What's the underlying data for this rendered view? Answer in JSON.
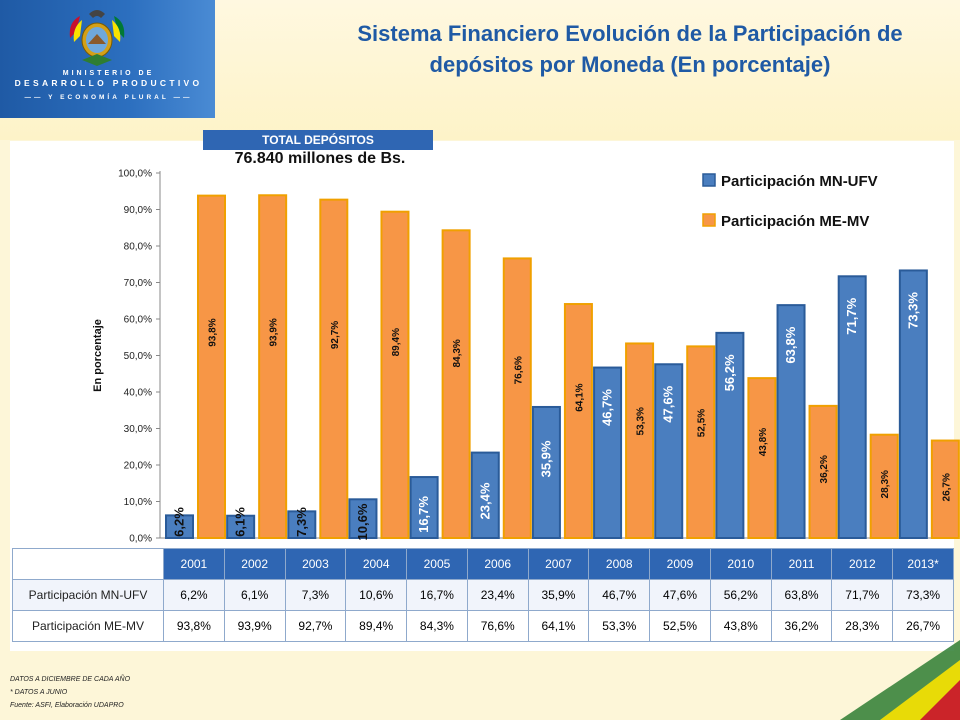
{
  "header": {
    "ministry_line1": "MINISTERIO DE",
    "ministry_line2": "DESARROLLO PRODUCTIVO",
    "ministry_line3": "Y ECONOMÍA PLURAL",
    "title_line1": "Sistema Financiero Evolución de la Participación de",
    "title_line2": "depósitos por Moneda (En porcentaje)"
  },
  "total": {
    "label": "TOTAL DEPÓSITOS",
    "value": "76.840 millones de Bs."
  },
  "colors": {
    "mn": "#4a7ebf",
    "me": "#f79646",
    "mn_border": "#2a5b99",
    "me_border": "#f0a000",
    "header_blue": "#2f66b3"
  },
  "chart_data": {
    "type": "bar",
    "categories": [
      "2001",
      "2002",
      "2003",
      "2004",
      "2005",
      "2006",
      "2007",
      "2008",
      "2009",
      "2010",
      "2011",
      "2012",
      "2013*"
    ],
    "ylabel": "En porcentaje",
    "ylim": [
      0,
      100
    ],
    "yticks": [
      "0,0%",
      "10,0%",
      "20,0%",
      "30,0%",
      "40,0%",
      "50,0%",
      "60,0%",
      "70,0%",
      "80,0%",
      "90,0%",
      "100,0%"
    ],
    "legend_position": "top-right",
    "series": [
      {
        "name": "Participación MN-UFV",
        "values": [
          6.2,
          6.1,
          7.3,
          10.6,
          16.7,
          23.4,
          35.9,
          46.7,
          47.6,
          56.2,
          63.8,
          71.7,
          73.3
        ],
        "labels": [
          "6,2%",
          "6,1%",
          "7,3%",
          "10,6%",
          "16,7%",
          "23,4%",
          "35,9%",
          "46,7%",
          "47,6%",
          "56,2%",
          "63,8%",
          "71,7%",
          "73,3%"
        ]
      },
      {
        "name": "Participación ME-MV",
        "values": [
          93.8,
          93.9,
          92.7,
          89.4,
          84.3,
          76.6,
          64.1,
          53.3,
          52.5,
          43.8,
          36.2,
          28.3,
          26.7
        ],
        "labels": [
          "93,8%",
          "93,9%",
          "92,7%",
          "89,4%",
          "84,3%",
          "76,6%",
          "64,1%",
          "53,3%",
          "52,5%",
          "43,8%",
          "36,2%",
          "28,3%",
          "26,7%"
        ]
      }
    ]
  },
  "notes": {
    "line1": "DATOS A DICIEMBRE DE CADA AÑO",
    "line2": "* DATOS A JUNIO",
    "line3": "Fuente: ASFI, Elaboración UDAPRO"
  }
}
